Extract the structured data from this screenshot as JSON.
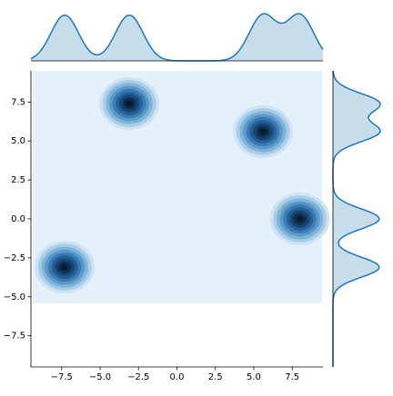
{
  "chart_data": {
    "type": "jointkde",
    "x": [
      -7.3,
      -3.1,
      5.6,
      8.0
    ],
    "y": [
      -3.1,
      7.4,
      5.6,
      0.0
    ],
    "color": "#1f77b4",
    "xlim": [
      -9.5,
      9.5
    ],
    "ylim": [
      -9.5,
      9.5
    ],
    "xticks": [
      {
        "value": -7.5,
        "label": "−7.5"
      },
      {
        "value": -5,
        "label": "−5.0"
      },
      {
        "value": -2.5,
        "label": "−2.5"
      },
      {
        "value": 0,
        "label": "0.0"
      },
      2.5,
      {
        "value": 5,
        "label": "5.0"
      },
      7.5
    ],
    "yticks": [
      {
        "value": -7.5,
        "label": "−7.5"
      },
      {
        "value": -5,
        "label": "−5.0"
      },
      {
        "value": -2.5,
        "label": "−2.5"
      },
      {
        "value": 0,
        "label": "0.0"
      },
      2.5,
      {
        "value": 5,
        "label": "5.0"
      },
      7.5
    ]
  }
}
